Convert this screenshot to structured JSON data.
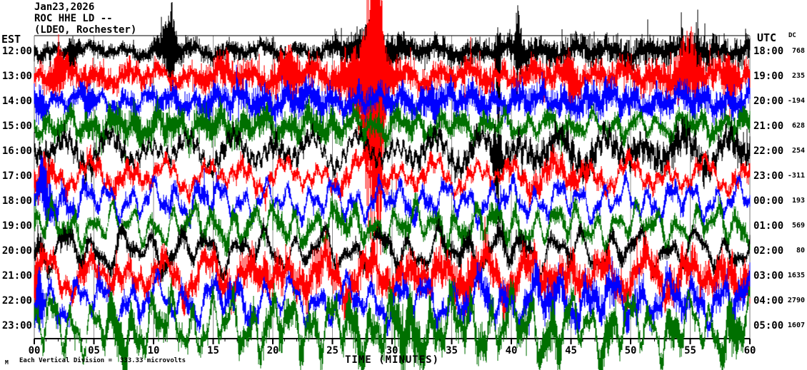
{
  "header": {
    "date": "Jan23,2026",
    "station": "ROC HHE LD --",
    "location": "(LDEO, Rochester)"
  },
  "axes": {
    "left_label": "EST",
    "right_label": "UTC",
    "dc_label": "DC",
    "x_title": "TIME (MINUTES)",
    "x_ticks": [
      "00",
      "05",
      "10",
      "15",
      "20",
      "25",
      "30",
      "35",
      "40",
      "45",
      "50",
      "55",
      "60"
    ],
    "footer_note": "Each Vertical Division =  333.33 microvolts",
    "watermark": "M"
  },
  "chart_data": {
    "type": "seismogram-helicorder",
    "title": "ROC HHE LD -- (LDEO, Rochester) Jan23,2026",
    "xlabel": "TIME (MINUTES)",
    "x_range": [
      0,
      60
    ],
    "minutes_per_line": 60,
    "grid_minutes": [
      5,
      10,
      15,
      20,
      25,
      30,
      35,
      40,
      45,
      50,
      55
    ],
    "microvolts_per_division": 333.33,
    "grid_color": "#909090",
    "border_color": "#777777",
    "axis_color": "#000000",
    "trace_colors": {
      "black": "#000000",
      "red": "#ff0000",
      "blue": "#0000ff",
      "green": "#007000"
    },
    "rows": [
      {
        "est": "12:00",
        "utc": "18:00",
        "dc": "768",
        "color": "black",
        "noise": 11,
        "slow": 9,
        "spikes": [
          {
            "m": 11.5,
            "a": 62,
            "w": 0.25
          },
          {
            "m": 11.3,
            "a": 28,
            "w": 0.8
          },
          {
            "m": 28.2,
            "a": 26,
            "w": 1.8
          },
          {
            "m": 38.9,
            "a": 12,
            "w": 0.15,
            "ad": 175
          },
          {
            "m": 40.6,
            "a": 58,
            "w": 0.25
          },
          {
            "m": 55.6,
            "a": 58,
            "w": 0.2
          },
          {
            "m": 3.2,
            "a": 18,
            "w": 0.5
          }
        ]
      },
      {
        "est": "13:00",
        "utc": "19:00",
        "dc": "235",
        "color": "red",
        "noise": 13,
        "slow": 13,
        "spikes": [
          {
            "m": 28.45,
            "a": 102,
            "w": 0.7,
            "ad": 235
          },
          {
            "m": 28.95,
            "a": 70,
            "w": 0.3,
            "ad": 150
          },
          {
            "m": 27.8,
            "a": 42,
            "w": 1.6,
            "ad": 60
          },
          {
            "m": 2.1,
            "a": 30,
            "w": 0.6
          },
          {
            "m": 21.4,
            "a": 22,
            "w": 0.7
          },
          {
            "m": 44.9,
            "a": 26,
            "w": 0.5
          },
          {
            "m": 54.8,
            "a": 45,
            "w": 0.9
          },
          {
            "m": 58.3,
            "a": 30,
            "w": 0.5
          }
        ]
      },
      {
        "est": "14:00",
        "utc": "20:00",
        "dc": "-194",
        "color": "blue",
        "noise": 12,
        "slow": 14,
        "spikes": [
          {
            "m": 33.5,
            "a": 24,
            "w": 0.4
          },
          {
            "m": 0.5,
            "a": 20,
            "w": 0.4
          },
          {
            "m": 4.5,
            "a": 22,
            "w": 0.6
          }
        ]
      },
      {
        "est": "15:00",
        "utc": "21:00",
        "dc": "628",
        "color": "green",
        "noise": 12,
        "slow": 17,
        "spikes": []
      },
      {
        "est": "16:00",
        "utc": "22:00",
        "dc": "254",
        "color": "black",
        "noise": 13,
        "slow": 27,
        "spikes": [
          {
            "m": 38.8,
            "a": 28,
            "w": 0.3,
            "ad": 90
          }
        ]
      },
      {
        "est": "17:00",
        "utc": "23:00",
        "dc": "-311",
        "color": "red",
        "noise": 13,
        "slow": 25,
        "spikes": [
          {
            "m": 0.8,
            "a": 25,
            "w": 0.6
          }
        ]
      },
      {
        "est": "18:00",
        "utc": "00:00",
        "dc": "193",
        "color": "blue",
        "noise": 13,
        "slow": 27,
        "spikes": [
          {
            "m": 0.9,
            "a": 35,
            "w": 0.5
          }
        ]
      },
      {
        "est": "19:00",
        "utc": "01:00",
        "dc": "569",
        "color": "green",
        "noise": 13,
        "slow": 28,
        "spikes": []
      },
      {
        "est": "20:00",
        "utc": "02:00",
        "dc": "80",
        "color": "black",
        "noise": 14,
        "slow": 30,
        "spikes": []
      },
      {
        "est": "21:00",
        "utc": "03:00",
        "dc": "1635",
        "color": "red",
        "noise": 14,
        "slow": 30,
        "spikes": [
          {
            "m": 0.2,
            "a": 30,
            "w": 0.3
          },
          {
            "m": 36.5,
            "a": 25,
            "w": 0.5
          }
        ]
      },
      {
        "est": "22:00",
        "utc": "04:00",
        "dc": "2790",
        "color": "blue",
        "noise": 14,
        "slow": 32,
        "spikes": [
          {
            "m": 0.4,
            "a": 45,
            "w": 0.3
          }
        ]
      },
      {
        "est": "23:00",
        "utc": "05:00",
        "dc": "1607",
        "color": "green",
        "noise": 15,
        "slow": 42,
        "spikes": [
          {
            "m": 7,
            "a": 0,
            "w": 1.2,
            "ad": 50
          },
          {
            "m": 27,
            "a": 0,
            "w": 1.0,
            "ad": 40
          },
          {
            "m": 31.5,
            "a": 0,
            "w": 1.1,
            "ad": 48
          },
          {
            "m": 43.5,
            "a": 0,
            "w": 0.9,
            "ad": 42
          },
          {
            "m": 48,
            "a": 0,
            "w": 0.8,
            "ad": 40
          },
          {
            "m": 53.5,
            "a": 0,
            "w": 0.8,
            "ad": 38
          },
          {
            "m": 58.5,
            "a": 0,
            "w": 0.9,
            "ad": 45
          }
        ]
      }
    ]
  }
}
